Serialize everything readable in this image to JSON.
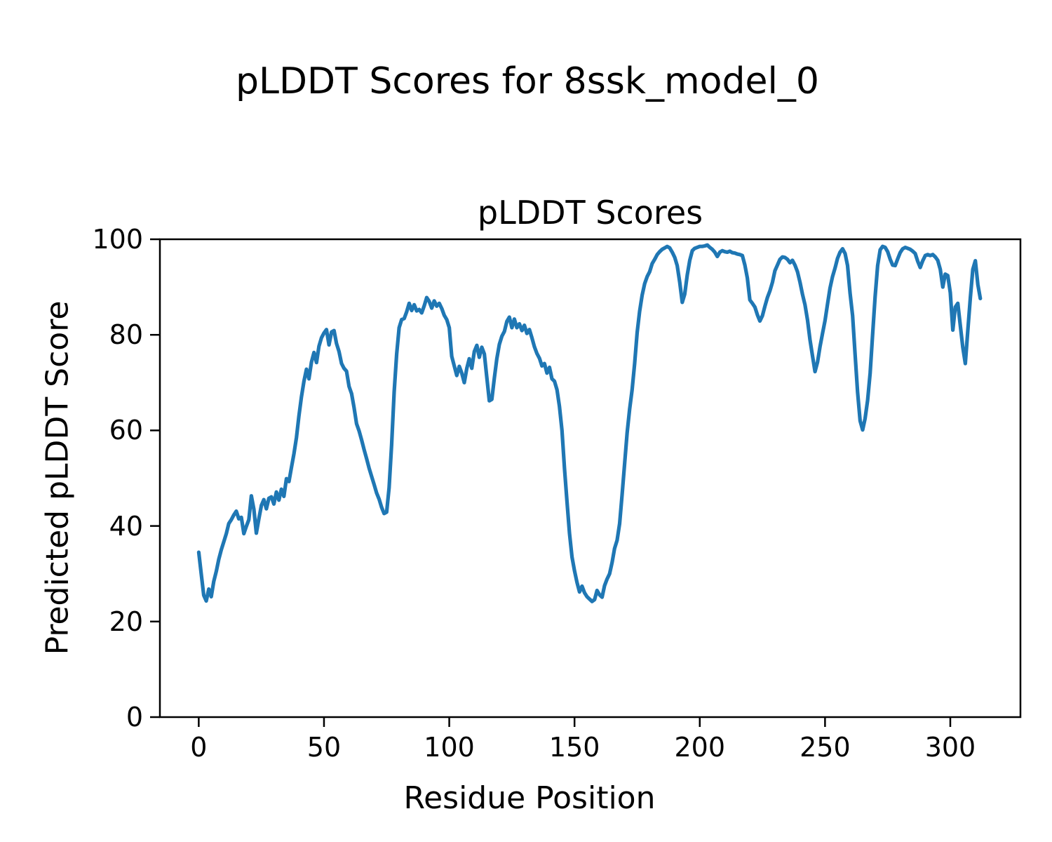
{
  "figure": {
    "suptitle": "pLDDT Scores for 8ssk_model_0"
  },
  "chart_data": {
    "type": "line",
    "title": "pLDDT Scores",
    "xlabel": "Residue Position",
    "ylabel": "Predicted pLDDT Score",
    "xlim": [
      -15.5,
      328
    ],
    "ylim": [
      0,
      100
    ],
    "x_ticks": [
      0,
      50,
      100,
      150,
      200,
      250,
      300
    ],
    "y_ticks": [
      0,
      20,
      40,
      60,
      80,
      100
    ],
    "grid": false,
    "legend": null,
    "line_color": "#1f77b4",
    "spine_color": "#000000",
    "series": [
      {
        "name": "pLDDT",
        "x_start": 0,
        "x_step": 1,
        "values": [
          34.5,
          30,
          25.5,
          24.3,
          26.8,
          25.2,
          28.4,
          30.5,
          33,
          35,
          36.7,
          38.4,
          40.5,
          41.3,
          42.3,
          43.1,
          41.5,
          41.8,
          38.4,
          39.9,
          41.3,
          46.3,
          43.5,
          38.5,
          41.5,
          44.3,
          45.5,
          43.6,
          45.8,
          46.1,
          44.6,
          47.1,
          45.4,
          47.7,
          46.2,
          49.9,
          49.3,
          52.2,
          55.1,
          58.5,
          63,
          67,
          70.3,
          72.8,
          70.8,
          74.3,
          76.3,
          74.2,
          77.6,
          79.4,
          80.4,
          81.1,
          77.9,
          80.6,
          80.9,
          78.2,
          76.5,
          74,
          73,
          72.4,
          69.2,
          67.7,
          64.8,
          61.4,
          59.9,
          58,
          56,
          54.1,
          52.1,
          50.4,
          48.7,
          46.9,
          45.6,
          43.9,
          42.6,
          42.9,
          48,
          57,
          68,
          76,
          81.5,
          83.2,
          83.4,
          84.8,
          86.6,
          85.1,
          86.3,
          85,
          85.3,
          84.6,
          86.1,
          87.8,
          87,
          85.6,
          87.1,
          86,
          86.6,
          85.5,
          84.1,
          83.2,
          81.5,
          75.5,
          73.5,
          71.5,
          73.4,
          72,
          70,
          73,
          75,
          73,
          76.5,
          77.8,
          75.3,
          77.4,
          76,
          71,
          66.2,
          66.5,
          71,
          75,
          78,
          79.7,
          80.7,
          82.8,
          83.7,
          81.5,
          83.3,
          81.5,
          82.3,
          80.9,
          82,
          80.3,
          81.1,
          79.4,
          77.5,
          76.1,
          75.1,
          73.5,
          74,
          72,
          73.2,
          70.8,
          70.3,
          68.5,
          65,
          60,
          52,
          45,
          38.5,
          33.5,
          30.6,
          28.2,
          26.2,
          27.4,
          26,
          25.2,
          24.7,
          24.2,
          24.6,
          26.5,
          25.6,
          25.1,
          27.5,
          28.9,
          30,
          32.4,
          35.3,
          37,
          40.5,
          46.5,
          53,
          59.5,
          64.5,
          68.5,
          74,
          80.5,
          84.9,
          88.3,
          90.7,
          92.2,
          93.2,
          94.9,
          95.8,
          96.8,
          97.4,
          97.9,
          98.2,
          98.5,
          98.2,
          97.3,
          96.2,
          94.5,
          91,
          86.8,
          88.5,
          92.5,
          95.6,
          97.6,
          98.1,
          98.3,
          98.5,
          98.5,
          98.6,
          98.8,
          98.3,
          97.9,
          97.3,
          96.4,
          97.3,
          97.6,
          97.4,
          97.3,
          97.5,
          97.2,
          97.1,
          96.9,
          96.8,
          96.6,
          94.6,
          91.9,
          87.3,
          86.6,
          85.8,
          84.2,
          82.9,
          84,
          86,
          87.8,
          89.2,
          91,
          93.4,
          94.6,
          95.8,
          96.3,
          96.2,
          95.8,
          95.1,
          95.6,
          94.6,
          93.2,
          91,
          88.5,
          86.3,
          83.1,
          79,
          75.6,
          72.3,
          74.3,
          77.5,
          80.3,
          83,
          86.5,
          89.8,
          92.2,
          94,
          96,
          97.3,
          98,
          97,
          94.5,
          88.7,
          84,
          76,
          68,
          62,
          60.1,
          62.5,
          66.3,
          72,
          80,
          88,
          94.5,
          97.8,
          98.5,
          98.3,
          97.4,
          95.8,
          94.6,
          94.5,
          95.9,
          97.2,
          98,
          98.3,
          98.1,
          97.9,
          97.5,
          97,
          95.4,
          94.1,
          95.5,
          96.6,
          96.8,
          96.6,
          96.8,
          96.3,
          95.6,
          93.7,
          90,
          92.7,
          92.4,
          88.8,
          81,
          85.8,
          86.6,
          81.9,
          77.4,
          74,
          81,
          87.8,
          93.7,
          95.5,
          90.5,
          87.6
        ]
      }
    ]
  }
}
